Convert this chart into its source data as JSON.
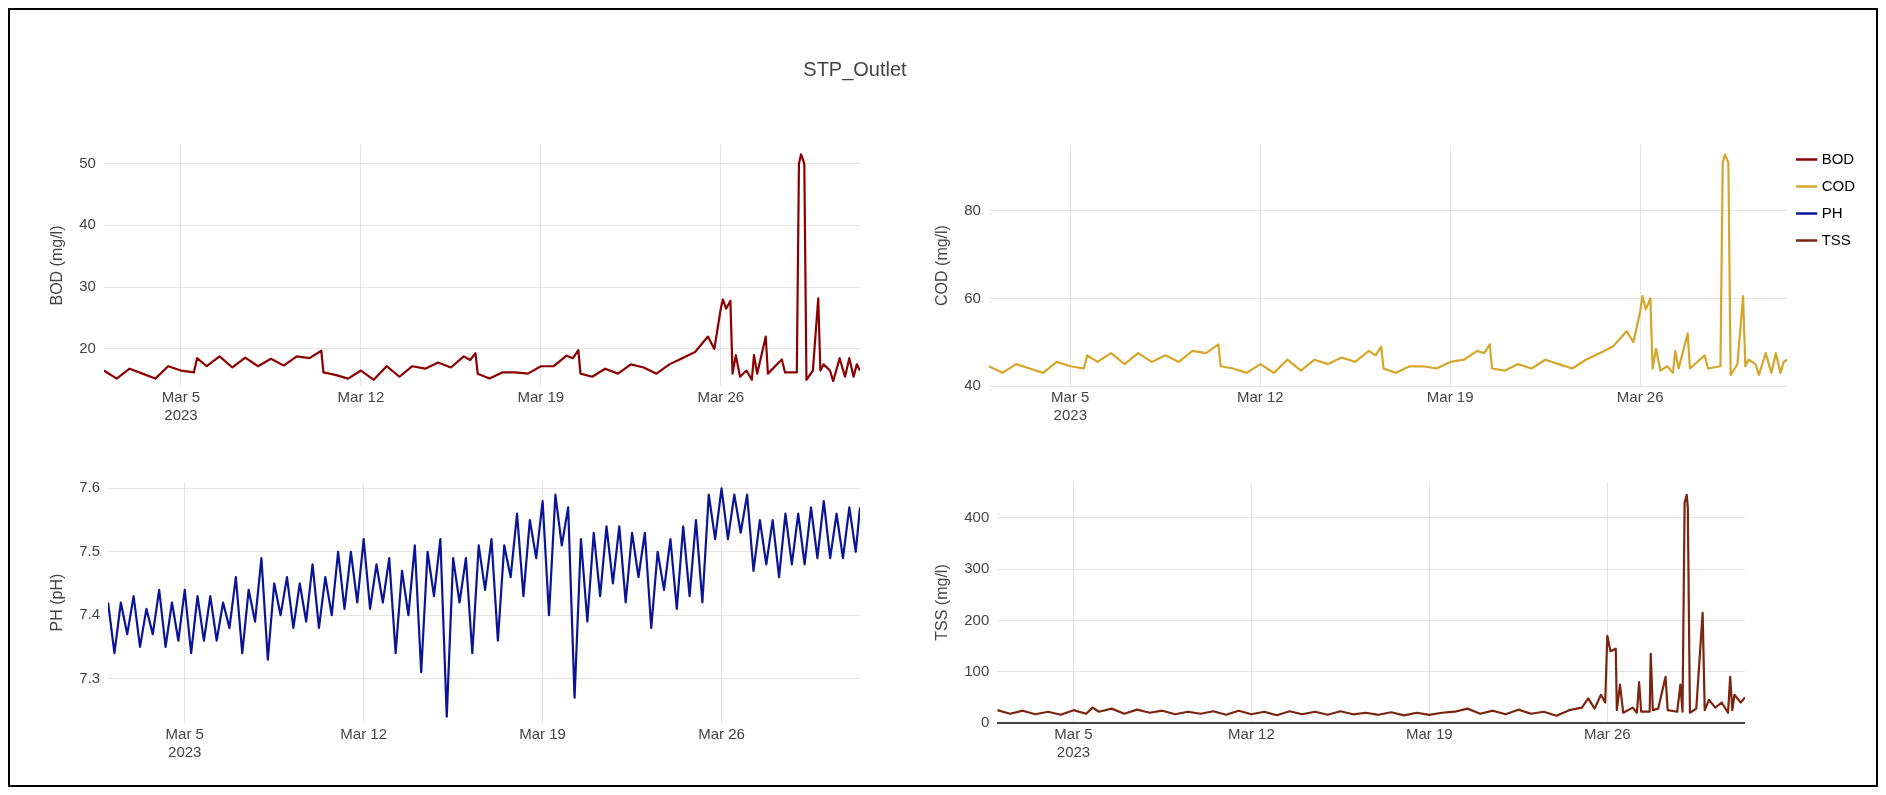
{
  "chart_data": [
    {
      "type": "line",
      "title": "STP_Outlet",
      "ylabel": "BOD (mg/l)",
      "xlim": [
        "2023-03-02",
        "2023-03-31T10:00"
      ],
      "xticks": [
        {
          "value": "2023-03-05",
          "label": "Mar 5\n2023"
        },
        {
          "value": "2023-03-12",
          "label": "Mar 12"
        },
        {
          "value": "2023-03-19",
          "label": "Mar 19"
        },
        {
          "value": "2023-03-26",
          "label": "Mar 26"
        }
      ],
      "ylim": [
        14,
        53
      ],
      "yticks": [
        20,
        30,
        40,
        50
      ],
      "grid": true,
      "series": [
        {
          "name": "BOD",
          "color": "#8b0000",
          "x": [
            "2023-03-02T00:00",
            "2023-03-02T12:00",
            "2023-03-03T00:00",
            "2023-03-03T12:00",
            "2023-03-04T00:00",
            "2023-03-04T12:00",
            "2023-03-05T00:00",
            "2023-03-05T12:00",
            "2023-03-05T15:00",
            "2023-03-06T00:00",
            "2023-03-06T12:00",
            "2023-03-07T00:00",
            "2023-03-07T12:00",
            "2023-03-08T00:00",
            "2023-03-08T12:00",
            "2023-03-09T00:00",
            "2023-03-09T12:00",
            "2023-03-10T00:00",
            "2023-03-10T11:00",
            "2023-03-10T13:00",
            "2023-03-11T00:00",
            "2023-03-11T12:00",
            "2023-03-12T00:00",
            "2023-03-12T12:00",
            "2023-03-13T00:00",
            "2023-03-13T12:00",
            "2023-03-14T00:00",
            "2023-03-14T12:00",
            "2023-03-15T00:00",
            "2023-03-15T12:00",
            "2023-03-16T00:00",
            "2023-03-16T06:00",
            "2023-03-16T11:00",
            "2023-03-16T13:00",
            "2023-03-17T00:00",
            "2023-03-17T12:00",
            "2023-03-18T00:00",
            "2023-03-18T12:00",
            "2023-03-19T00:00",
            "2023-03-19T12:00",
            "2023-03-20T00:00",
            "2023-03-20T06:00",
            "2023-03-20T11:00",
            "2023-03-20T13:00",
            "2023-03-21T00:00",
            "2023-03-21T12:00",
            "2023-03-22T00:00",
            "2023-03-22T12:00",
            "2023-03-23T00:00",
            "2023-03-23T12:00",
            "2023-03-24T00:00",
            "2023-03-24T12:00",
            "2023-03-25T00:00",
            "2023-03-25T12:00",
            "2023-03-25T18:00",
            "2023-03-26T00:00",
            "2023-03-26T02:00",
            "2023-03-26T05:00",
            "2023-03-26T09:00",
            "2023-03-26T11:00",
            "2023-03-26T14:00",
            "2023-03-26T18:00",
            "2023-03-27T00:00",
            "2023-03-27T05:00",
            "2023-03-27T07:00",
            "2023-03-27T10:00",
            "2023-03-27T18:00",
            "2023-03-27T20:00",
            "2023-03-28T09:00",
            "2023-03-28T12:00",
            "2023-03-28T23:00",
            "2023-03-29T01:00",
            "2023-03-29T03:00",
            "2023-03-29T06:00",
            "2023-03-29T08:00",
            "2023-03-29T14:00",
            "2023-03-29T19:00",
            "2023-03-29T21:00",
            "2023-03-30T00:00",
            "2023-03-30T06:00",
            "2023-03-30T09:00",
            "2023-03-30T15:00",
            "2023-03-30T20:00",
            "2023-03-31T00:00",
            "2023-03-31T04:00",
            "2023-03-31T07:00",
            "2023-03-31T10:00"
          ],
          "values": [
            16.5,
            15.2,
            16.8,
            16.0,
            15.2,
            17.2,
            16.5,
            16.2,
            18.5,
            17.2,
            18.8,
            17.0,
            18.6,
            17.2,
            18.4,
            17.3,
            18.8,
            18.5,
            19.7,
            16.2,
            15.8,
            15.2,
            16.5,
            15.0,
            17.2,
            15.5,
            17.2,
            16.8,
            17.8,
            17.0,
            18.8,
            18.2,
            19.3,
            16.0,
            15.2,
            16.2,
            16.2,
            16.0,
            17.2,
            17.2,
            18.9,
            18.5,
            19.8,
            16.0,
            15.5,
            16.8,
            16.0,
            17.5,
            17.0,
            16.0,
            17.5,
            18.5,
            19.5,
            22.0,
            20.0,
            26.5,
            28.0,
            26.5,
            27.8,
            16.0,
            19.0,
            15.5,
            16.5,
            15.0,
            19.0,
            16.0,
            22.0,
            16.0,
            18.3,
            16.2,
            16.2,
            50.0,
            51.5,
            50.0,
            15.0,
            16.5,
            28.2,
            16.5,
            17.5,
            16.5,
            14.8,
            18.5,
            15.5,
            18.5,
            15.5,
            17.5,
            16.5
          ]
        }
      ]
    },
    {
      "type": "line",
      "ylabel": "COD (mg/l)",
      "legend": "top right",
      "xlim": [
        "2023-03-02",
        "2023-03-31T10:00"
      ],
      "xticks": [
        {
          "value": "2023-03-05",
          "label": "Mar 5\n2023"
        },
        {
          "value": "2023-03-12",
          "label": "Mar 12"
        },
        {
          "value": "2023-03-19",
          "label": "Mar 19"
        },
        {
          "value": "2023-03-26",
          "label": "Mar 26"
        }
      ],
      "ylim": [
        40,
        95
      ],
      "yticks": [
        40,
        60,
        80
      ],
      "grid": true,
      "series": [
        {
          "name": "COD",
          "color": "#d4a72c",
          "x": [
            "2023-03-02T00:00",
            "2023-03-02T12:00",
            "2023-03-03T00:00",
            "2023-03-03T12:00",
            "2023-03-04T00:00",
            "2023-03-04T12:00",
            "2023-03-05T00:00",
            "2023-03-05T12:00",
            "2023-03-05T15:00",
            "2023-03-06T00:00",
            "2023-03-06T12:00",
            "2023-03-07T00:00",
            "2023-03-07T12:00",
            "2023-03-08T00:00",
            "2023-03-08T12:00",
            "2023-03-09T00:00",
            "2023-03-09T12:00",
            "2023-03-10T00:00",
            "2023-03-10T11:00",
            "2023-03-10T13:00",
            "2023-03-11T00:00",
            "2023-03-11T12:00",
            "2023-03-12T00:00",
            "2023-03-12T12:00",
            "2023-03-13T00:00",
            "2023-03-13T12:00",
            "2023-03-14T00:00",
            "2023-03-14T12:00",
            "2023-03-15T00:00",
            "2023-03-15T12:00",
            "2023-03-16T00:00",
            "2023-03-16T06:00",
            "2023-03-16T11:00",
            "2023-03-16T13:00",
            "2023-03-17T00:00",
            "2023-03-17T12:00",
            "2023-03-18T00:00",
            "2023-03-18T12:00",
            "2023-03-19T00:00",
            "2023-03-19T12:00",
            "2023-03-20T00:00",
            "2023-03-20T06:00",
            "2023-03-20T11:00",
            "2023-03-20T13:00",
            "2023-03-21T00:00",
            "2023-03-21T12:00",
            "2023-03-22T00:00",
            "2023-03-22T12:00",
            "2023-03-23T00:00",
            "2023-03-23T12:00",
            "2023-03-24T00:00",
            "2023-03-24T12:00",
            "2023-03-25T00:00",
            "2023-03-25T12:00",
            "2023-03-25T18:00",
            "2023-03-26T00:00",
            "2023-03-26T02:00",
            "2023-03-26T05:00",
            "2023-03-26T09:00",
            "2023-03-26T11:00",
            "2023-03-26T14:00",
            "2023-03-26T18:00",
            "2023-03-27T00:00",
            "2023-03-27T05:00",
            "2023-03-27T07:00",
            "2023-03-27T10:00",
            "2023-03-27T18:00",
            "2023-03-27T20:00",
            "2023-03-28T09:00",
            "2023-03-28T12:00",
            "2023-03-28T23:00",
            "2023-03-29T01:00",
            "2023-03-29T03:00",
            "2023-03-29T06:00",
            "2023-03-29T08:00",
            "2023-03-29T14:00",
            "2023-03-29T19:00",
            "2023-03-29T21:00",
            "2023-03-30T00:00",
            "2023-03-30T06:00",
            "2023-03-30T09:00",
            "2023-03-30T15:00",
            "2023-03-30T20:00",
            "2023-03-31T00:00",
            "2023-03-31T04:00",
            "2023-03-31T07:00",
            "2023-03-31T10:00"
          ],
          "values": [
            44.5,
            43,
            45,
            44,
            43,
            45.5,
            44.5,
            44,
            47,
            45.5,
            47.5,
            45,
            47.5,
            45.5,
            47,
            45.5,
            48,
            47.5,
            49.5,
            44.5,
            44,
            43,
            45,
            43,
            46,
            43.5,
            46,
            45,
            46.5,
            45.5,
            48,
            47,
            49,
            44,
            43,
            44.5,
            44.5,
            44,
            45.5,
            46,
            48,
            47.5,
            49.5,
            44,
            43.5,
            45,
            44,
            46,
            45,
            44,
            46,
            47.5,
            49,
            52.5,
            50,
            57,
            60.5,
            57.5,
            60,
            44,
            48.5,
            43.5,
            44.5,
            43,
            48,
            44,
            52,
            44,
            47,
            44,
            44.5,
            91,
            92.8,
            91,
            42.5,
            45,
            60.5,
            44.5,
            46,
            45,
            42.5,
            47.5,
            43,
            47.5,
            43,
            45.5,
            46
          ]
        }
      ]
    },
    {
      "type": "line",
      "ylabel": "PH (pH)",
      "xlim": [
        "2023-03-02",
        "2023-03-31T10:00"
      ],
      "xticks": [
        {
          "value": "2023-03-05",
          "label": "Mar 5\n2023"
        },
        {
          "value": "2023-03-12",
          "label": "Mar 12"
        },
        {
          "value": "2023-03-19",
          "label": "Mar 19"
        },
        {
          "value": "2023-03-26",
          "label": "Mar 26"
        }
      ],
      "ylim": [
        7.23,
        7.61
      ],
      "yticks": [
        7.3,
        7.4,
        7.5,
        7.6
      ],
      "grid": true,
      "series": [
        {
          "name": "PH",
          "color": "#0a1496",
          "x": [
            "2023-03-02T00:00",
            "2023-03-02T06:00",
            "2023-03-02T12:00",
            "2023-03-02T18:00",
            "2023-03-03T00:00",
            "2023-03-03T06:00",
            "2023-03-03T12:00",
            "2023-03-03T18:00",
            "2023-03-04T00:00",
            "2023-03-04T06:00",
            "2023-03-04T12:00",
            "2023-03-04T18:00",
            "2023-03-05T00:00",
            "2023-03-05T06:00",
            "2023-03-05T12:00",
            "2023-03-05T18:00",
            "2023-03-06T00:00",
            "2023-03-06T06:00",
            "2023-03-06T12:00",
            "2023-03-06T18:00",
            "2023-03-07T00:00",
            "2023-03-07T06:00",
            "2023-03-07T12:00",
            "2023-03-07T18:00",
            "2023-03-08T00:00",
            "2023-03-08T06:00",
            "2023-03-08T12:00",
            "2023-03-08T18:00",
            "2023-03-09T00:00",
            "2023-03-09T06:00",
            "2023-03-09T12:00",
            "2023-03-09T18:00",
            "2023-03-10T00:00",
            "2023-03-10T06:00",
            "2023-03-10T12:00",
            "2023-03-10T18:00",
            "2023-03-11T00:00",
            "2023-03-11T06:00",
            "2023-03-11T12:00",
            "2023-03-11T18:00",
            "2023-03-12T00:00",
            "2023-03-12T06:00",
            "2023-03-12T12:00",
            "2023-03-12T18:00",
            "2023-03-13T00:00",
            "2023-03-13T06:00",
            "2023-03-13T12:00",
            "2023-03-13T18:00",
            "2023-03-14T00:00",
            "2023-03-14T06:00",
            "2023-03-14T12:00",
            "2023-03-14T18:00",
            "2023-03-15T00:00",
            "2023-03-15T06:00",
            "2023-03-15T12:00",
            "2023-03-15T18:00",
            "2023-03-16T00:00",
            "2023-03-16T06:00",
            "2023-03-16T12:00",
            "2023-03-16T18:00",
            "2023-03-17T00:00",
            "2023-03-17T06:00",
            "2023-03-17T12:00",
            "2023-03-17T18:00",
            "2023-03-18T00:00",
            "2023-03-18T06:00",
            "2023-03-18T12:00",
            "2023-03-18T18:00",
            "2023-03-19T00:00",
            "2023-03-19T06:00",
            "2023-03-19T12:00",
            "2023-03-19T18:00",
            "2023-03-20T00:00",
            "2023-03-20T06:00",
            "2023-03-20T12:00",
            "2023-03-20T18:00",
            "2023-03-21T00:00",
            "2023-03-21T06:00",
            "2023-03-21T12:00",
            "2023-03-21T18:00",
            "2023-03-22T00:00",
            "2023-03-22T06:00",
            "2023-03-22T12:00",
            "2023-03-22T18:00",
            "2023-03-23T00:00",
            "2023-03-23T06:00",
            "2023-03-23T12:00",
            "2023-03-23T18:00",
            "2023-03-24T00:00",
            "2023-03-24T06:00",
            "2023-03-24T12:00",
            "2023-03-24T18:00",
            "2023-03-25T00:00",
            "2023-03-25T06:00",
            "2023-03-25T12:00",
            "2023-03-25T18:00",
            "2023-03-26T00:00",
            "2023-03-26T06:00",
            "2023-03-26T12:00",
            "2023-03-26T18:00",
            "2023-03-27T00:00",
            "2023-03-27T06:00",
            "2023-03-27T12:00",
            "2023-03-27T18:00",
            "2023-03-28T00:00",
            "2023-03-28T06:00",
            "2023-03-28T12:00",
            "2023-03-28T18:00",
            "2023-03-29T00:00",
            "2023-03-29T06:00",
            "2023-03-29T12:00",
            "2023-03-29T18:00",
            "2023-03-30T00:00",
            "2023-03-30T06:00",
            "2023-03-30T12:00",
            "2023-03-30T18:00",
            "2023-03-31T00:00",
            "2023-03-31T06:00",
            "2023-03-31T10:00"
          ],
          "values": [
            7.42,
            7.34,
            7.42,
            7.37,
            7.43,
            7.35,
            7.41,
            7.37,
            7.44,
            7.35,
            7.42,
            7.36,
            7.44,
            7.34,
            7.43,
            7.36,
            7.43,
            7.36,
            7.42,
            7.38,
            7.46,
            7.34,
            7.44,
            7.39,
            7.49,
            7.33,
            7.45,
            7.4,
            7.46,
            7.38,
            7.45,
            7.39,
            7.48,
            7.38,
            7.46,
            7.4,
            7.5,
            7.41,
            7.5,
            7.42,
            7.52,
            7.41,
            7.48,
            7.42,
            7.49,
            7.34,
            7.47,
            7.4,
            7.51,
            7.31,
            7.5,
            7.43,
            7.52,
            7.24,
            7.49,
            7.42,
            7.49,
            7.34,
            7.51,
            7.44,
            7.52,
            7.36,
            7.51,
            7.46,
            7.56,
            7.43,
            7.55,
            7.49,
            7.58,
            7.4,
            7.59,
            7.51,
            7.57,
            7.27,
            7.52,
            7.39,
            7.53,
            7.43,
            7.54,
            7.45,
            7.54,
            7.42,
            7.53,
            7.46,
            7.53,
            7.38,
            7.5,
            7.44,
            7.52,
            7.41,
            7.54,
            7.43,
            7.55,
            7.42,
            7.59,
            7.52,
            7.6,
            7.52,
            7.59,
            7.53,
            7.59,
            7.47,
            7.55,
            7.48,
            7.55,
            7.46,
            7.56,
            7.48,
            7.56,
            7.48,
            7.57,
            7.49,
            7.58,
            7.49,
            7.56,
            7.49,
            7.57,
            7.5,
            7.57
          ]
        }
      ]
    },
    {
      "type": "line",
      "ylabel": "TSS (mg/l)",
      "xlim": [
        "2023-03-02",
        "2023-03-31T10:00"
      ],
      "xticks": [
        {
          "value": "2023-03-05",
          "label": "Mar 5\n2023"
        },
        {
          "value": "2023-03-12",
          "label": "Mar 12"
        },
        {
          "value": "2023-03-19",
          "label": "Mar 19"
        },
        {
          "value": "2023-03-26",
          "label": "Mar 26"
        }
      ],
      "ylim": [
        0,
        470
      ],
      "yticks": [
        0,
        100,
        200,
        300,
        400
      ],
      "grid": true,
      "series": [
        {
          "name": "TSS",
          "color": "#7a2510",
          "x": [
            "2023-03-02T00:00",
            "2023-03-02T12:00",
            "2023-03-03T00:00",
            "2023-03-03T12:00",
            "2023-03-04T00:00",
            "2023-03-04T12:00",
            "2023-03-05T00:00",
            "2023-03-05T12:00",
            "2023-03-05T18:00",
            "2023-03-06T00:00",
            "2023-03-06T12:00",
            "2023-03-07T00:00",
            "2023-03-07T12:00",
            "2023-03-08T00:00",
            "2023-03-08T12:00",
            "2023-03-09T00:00",
            "2023-03-09T12:00",
            "2023-03-10T00:00",
            "2023-03-10T12:00",
            "2023-03-11T00:00",
            "2023-03-11T12:00",
            "2023-03-12T00:00",
            "2023-03-12T12:00",
            "2023-03-13T00:00",
            "2023-03-13T12:00",
            "2023-03-14T00:00",
            "2023-03-14T12:00",
            "2023-03-15T00:00",
            "2023-03-15T12:00",
            "2023-03-16T00:00",
            "2023-03-16T12:00",
            "2023-03-17T00:00",
            "2023-03-17T12:00",
            "2023-03-18T00:00",
            "2023-03-18T12:00",
            "2023-03-19T00:00",
            "2023-03-19T12:00",
            "2023-03-20T00:00",
            "2023-03-20T12:00",
            "2023-03-21T00:00",
            "2023-03-21T12:00",
            "2023-03-22T00:00",
            "2023-03-22T12:00",
            "2023-03-23T00:00",
            "2023-03-23T12:00",
            "2023-03-24T00:00",
            "2023-03-24T12:00",
            "2023-03-25T00:00",
            "2023-03-25T06:00",
            "2023-03-25T12:00",
            "2023-03-25T18:00",
            "2023-03-25T22:00",
            "2023-03-26T00:00",
            "2023-03-26T03:00",
            "2023-03-26T08:00",
            "2023-03-26T09:00",
            "2023-03-26T12:00",
            "2023-03-26T15:00",
            "2023-03-27T00:00",
            "2023-03-27T04:00",
            "2023-03-27T06:00",
            "2023-03-27T08:00",
            "2023-03-27T16:00",
            "2023-03-27T17:00",
            "2023-03-27T19:00",
            "2023-03-28T00:00",
            "2023-03-28T07:00",
            "2023-03-28T09:00",
            "2023-03-28T18:00",
            "2023-03-28T21:00",
            "2023-03-28T23:00",
            "2023-03-29T01:00",
            "2023-03-29T03:00",
            "2023-03-29T04:00",
            "2023-03-29T06:00",
            "2023-03-29T12:00",
            "2023-03-29T18:00",
            "2023-03-29T20:00",
            "2023-03-30T00:00",
            "2023-03-30T06:00",
            "2023-03-30T12:00",
            "2023-03-30T18:00",
            "2023-03-30T20:00",
            "2023-03-30T22:00",
            "2023-03-31T00:00",
            "2023-03-31T06:00",
            "2023-03-31T10:00"
          ],
          "values": [
            25,
            18,
            24,
            17,
            22,
            16,
            25,
            18,
            30,
            22,
            28,
            18,
            26,
            20,
            24,
            17,
            22,
            18,
            23,
            16,
            24,
            17,
            22,
            15,
            23,
            17,
            22,
            16,
            23,
            17,
            20,
            16,
            21,
            15,
            20,
            16,
            20,
            22,
            28,
            18,
            24,
            17,
            26,
            18,
            22,
            14,
            25,
            30,
            48,
            28,
            55,
            40,
            170,
            140,
            145,
            25,
            75,
            20,
            30,
            20,
            80,
            22,
            22,
            135,
            25,
            28,
            90,
            25,
            22,
            75,
            22,
            430,
            445,
            420,
            20,
            28,
            215,
            25,
            45,
            30,
            40,
            20,
            90,
            25,
            55,
            40,
            50
          ]
        }
      ]
    }
  ]
}
